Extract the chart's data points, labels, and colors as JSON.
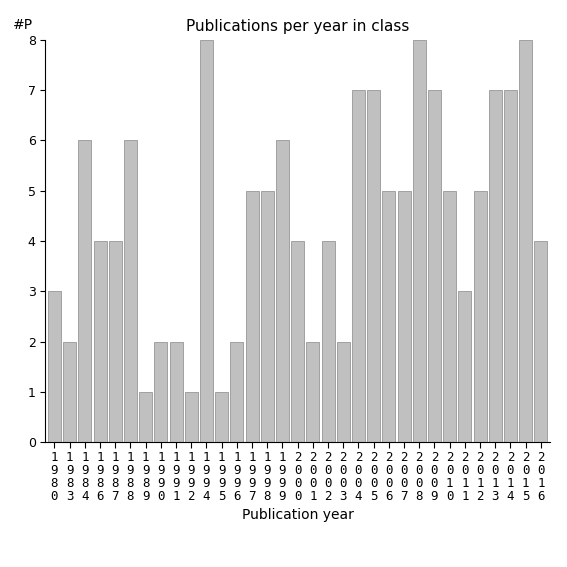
{
  "title": "Publications per year in class",
  "xlabel": "Publication year",
  "ylabel": "#P",
  "bar_color": "#c0c0c0",
  "bar_edgecolor": "#888888",
  "categories": [
    "1980",
    "1983",
    "1984",
    "1986",
    "1987",
    "1988",
    "1989",
    "1990",
    "1991",
    "1992",
    "1994",
    "1995",
    "1996",
    "1997",
    "1998",
    "1999",
    "2000",
    "2001",
    "2002",
    "2003",
    "2004",
    "2005",
    "2006",
    "2007",
    "2008",
    "2009",
    "2010",
    "2011",
    "2012",
    "2013",
    "2014",
    "2015",
    "2016"
  ],
  "values": [
    3,
    2,
    6,
    4,
    4,
    6,
    1,
    2,
    2,
    1,
    8,
    1,
    2,
    5,
    5,
    6,
    4,
    2,
    4,
    2,
    7,
    7,
    5,
    5,
    8,
    7,
    5,
    3,
    5,
    7,
    7,
    8,
    4
  ],
  "ylim": [
    0,
    8
  ],
  "yticks": [
    0,
    1,
    2,
    3,
    4,
    5,
    6,
    7,
    8
  ],
  "title_fontsize": 11,
  "axis_label_fontsize": 10,
  "tick_label_fontsize": 9,
  "background_color": "#ffffff"
}
